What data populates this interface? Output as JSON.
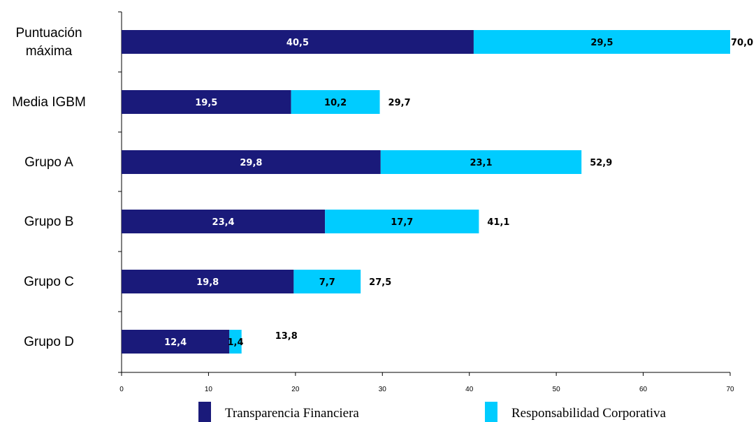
{
  "chart_data": {
    "type": "bar",
    "orientation": "horizontal",
    "stacked": true,
    "categories": [
      "Puntuación máxima",
      "Media IGBM",
      "Grupo A",
      "Grupo B",
      "Grupo C",
      "Grupo D"
    ],
    "category_lines": [
      [
        "Puntuación",
        "máxima"
      ],
      [
        "Media IGBM"
      ],
      [
        "Grupo A"
      ],
      [
        "Grupo B"
      ],
      [
        "Grupo C"
      ],
      [
        "Grupo D"
      ]
    ],
    "series": [
      {
        "name": "Transparencia Financiera",
        "color": "#1a1a7a",
        "label_color": "#ffffff",
        "values": [
          40.5,
          19.5,
          29.8,
          23.4,
          19.8,
          12.4
        ],
        "value_labels": [
          "40,5",
          "19,5",
          "29,8",
          "23,4",
          "19,8",
          "12,4"
        ]
      },
      {
        "name": "Responsabilidad Corporativa",
        "color": "#00ccff",
        "label_color": "#000000",
        "values": [
          29.5,
          10.2,
          23.1,
          17.7,
          7.7,
          1.4
        ],
        "value_labels": [
          "29,5",
          "10,2",
          "23,1",
          "17,7",
          "7,7",
          "1,4"
        ]
      }
    ],
    "totals": [
      70.0,
      29.7,
      52.9,
      41.1,
      27.5,
      13.8
    ],
    "total_labels": [
      "70,0",
      "29,7",
      "52,9",
      "41,1",
      "27,5",
      "13,8"
    ],
    "xlim": [
      0,
      70
    ],
    "xticks": [
      0,
      10,
      20,
      30,
      40,
      50,
      60,
      70
    ],
    "title": "",
    "xlabel": "",
    "ylabel": "",
    "grid": false,
    "legend_position": "bottom"
  }
}
